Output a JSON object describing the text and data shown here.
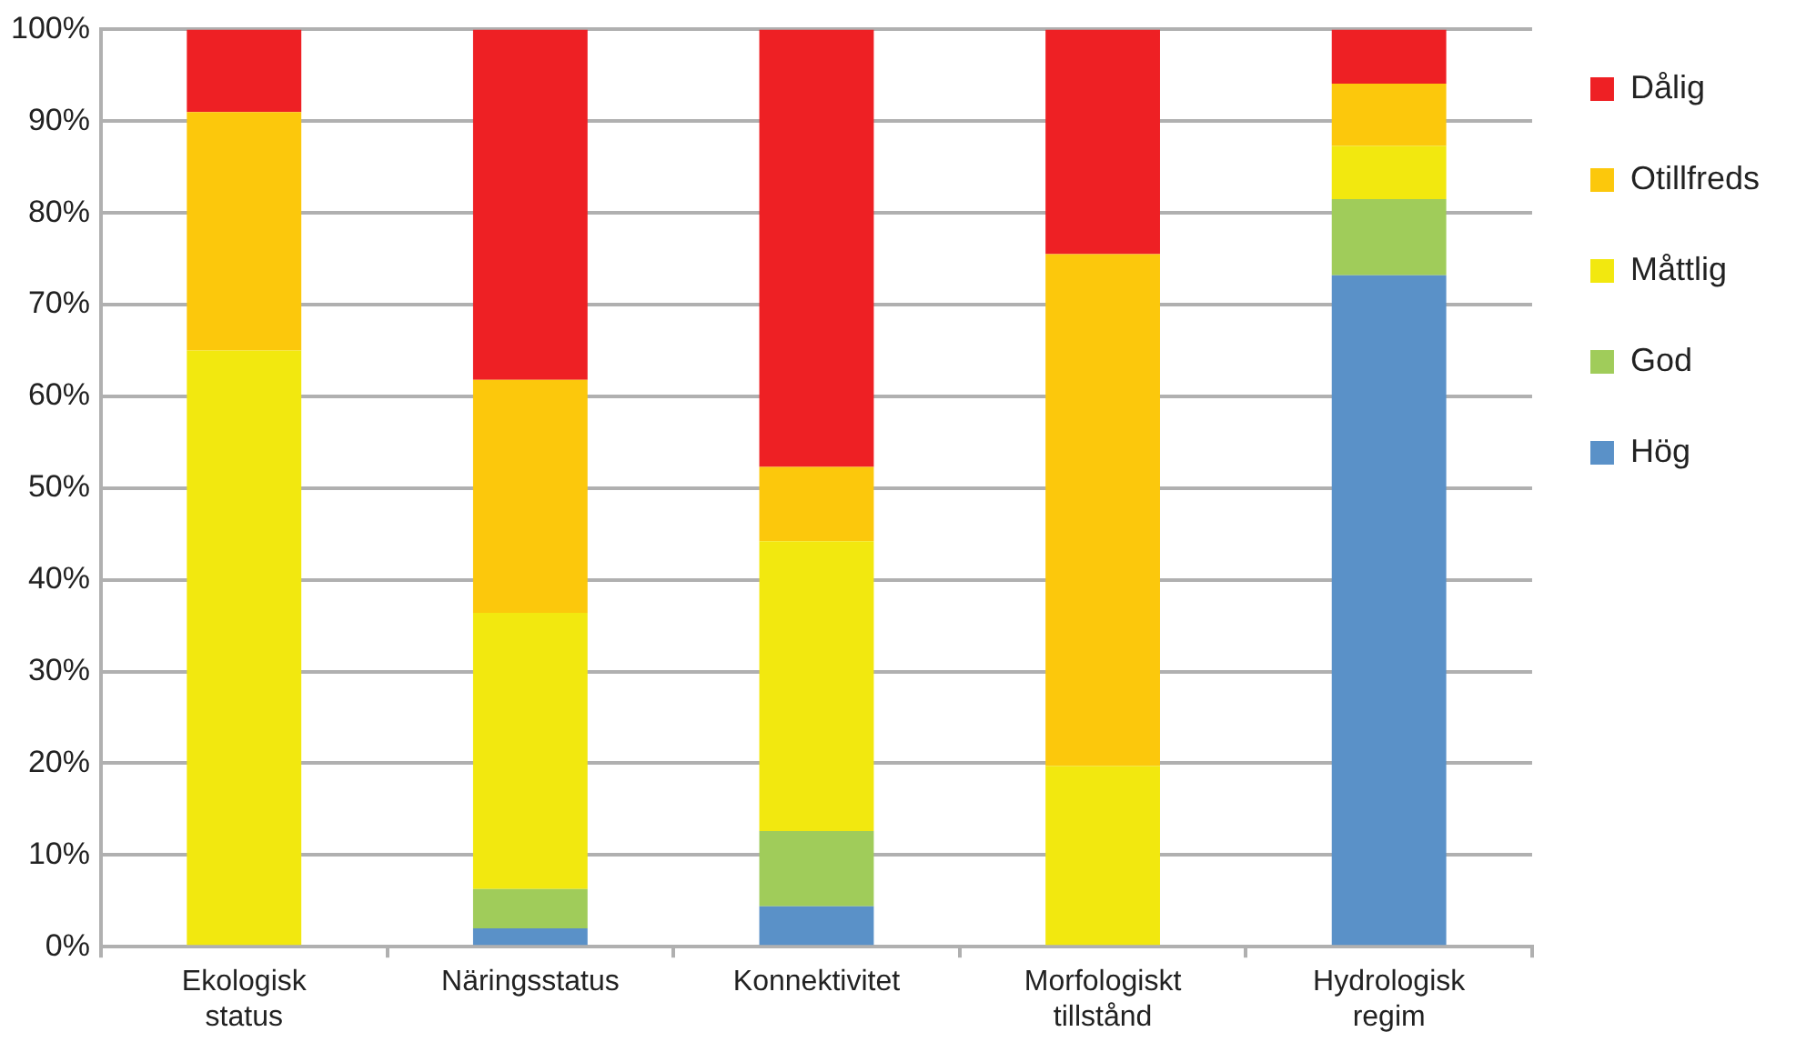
{
  "chart_data": {
    "type": "bar",
    "stacked": true,
    "categories": [
      "Ekologisk status",
      "Näringsstatus",
      "Konnektivitet",
      "Morfologiskt tillstånd",
      "Hydrologisk regim"
    ],
    "series": [
      {
        "name": "Hög",
        "color": "#5a91c8",
        "values": [
          0,
          2,
          4.4,
          0,
          73.2
        ]
      },
      {
        "name": "God",
        "color": "#a0cc5a",
        "values": [
          0,
          4.3,
          8.2,
          0,
          8.3
        ]
      },
      {
        "name": "Måttlig",
        "color": "#f2e80f",
        "values": [
          65,
          30.1,
          31.6,
          19.7,
          5.8
        ]
      },
      {
        "name": "Otillfreds",
        "color": "#fcc80c",
        "values": [
          26,
          25.4,
          8.1,
          55.8,
          6.8
        ]
      },
      {
        "name": "Dålig",
        "color": "#ee2024",
        "values": [
          9,
          38.2,
          47.7,
          24.5,
          5.9
        ]
      }
    ],
    "ylim": [
      0,
      100
    ],
    "yticks": [
      {
        "value": 0,
        "label": "0%"
      },
      {
        "value": 10,
        "label": "10%"
      },
      {
        "value": 20,
        "label": "20%"
      },
      {
        "value": 30,
        "label": "30%"
      },
      {
        "value": 40,
        "label": "40%"
      },
      {
        "value": 50,
        "label": "50%"
      },
      {
        "value": 60,
        "label": "60%"
      },
      {
        "value": 70,
        "label": "70%"
      },
      {
        "value": 80,
        "label": "80%"
      },
      {
        "value": 90,
        "label": "90%"
      },
      {
        "value": 100,
        "label": "100%"
      }
    ],
    "grid": "y",
    "legend": "top right"
  }
}
